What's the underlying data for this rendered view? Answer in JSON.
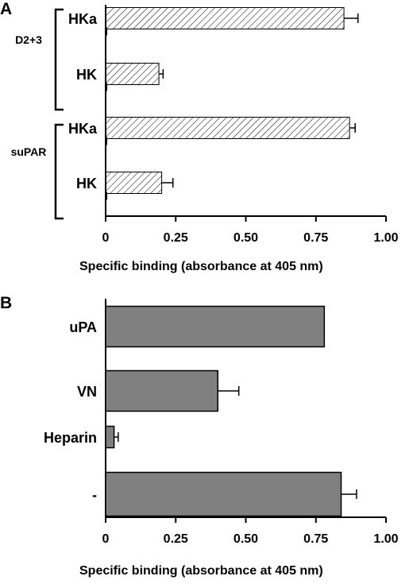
{
  "chart_data": [
    {
      "panel": "A",
      "type": "bar",
      "orientation": "horizontal",
      "xlabel": "Specific binding (absorbance at 405 nm)",
      "xlim": [
        0,
        1.0
      ],
      "x_ticks": [
        "0",
        "0.25",
        "0.50",
        "0.75",
        "1.00"
      ],
      "x_tick_values": [
        0,
        0.25,
        0.5,
        0.75,
        1.0
      ],
      "groups": [
        {
          "label": "D2+3",
          "items": [
            {
              "category": "HKa",
              "value": 0.85,
              "error": 0.05,
              "control": 0.005
            },
            {
              "category": "HK",
              "value": 0.19,
              "error": 0.015,
              "control": 0.005
            }
          ]
        },
        {
          "label": "suPAR",
          "items": [
            {
              "category": "HKa",
              "value": 0.87,
              "error": 0.02,
              "control": 0.005
            },
            {
              "category": "HK",
              "value": 0.2,
              "error": 0.04,
              "control": 0.005
            }
          ]
        }
      ],
      "bar_style": "hatched"
    },
    {
      "panel": "B",
      "type": "bar",
      "orientation": "horizontal",
      "xlabel": "Specific binding (absorbance at 405 nm)",
      "xlim": [
        0,
        1.0
      ],
      "x_ticks": [
        "0",
        "0.25",
        "0.50",
        "0.75",
        "1.00"
      ],
      "x_tick_values": [
        0,
        0.25,
        0.5,
        0.75,
        1.0
      ],
      "categories": [
        "uPA",
        "VN",
        "Heparin",
        "-"
      ],
      "values": [
        0.78,
        0.4,
        0.03,
        0.84
      ],
      "errors": [
        0.0,
        0.075,
        0.015,
        0.055
      ],
      "bar_color": "#808080"
    }
  ]
}
